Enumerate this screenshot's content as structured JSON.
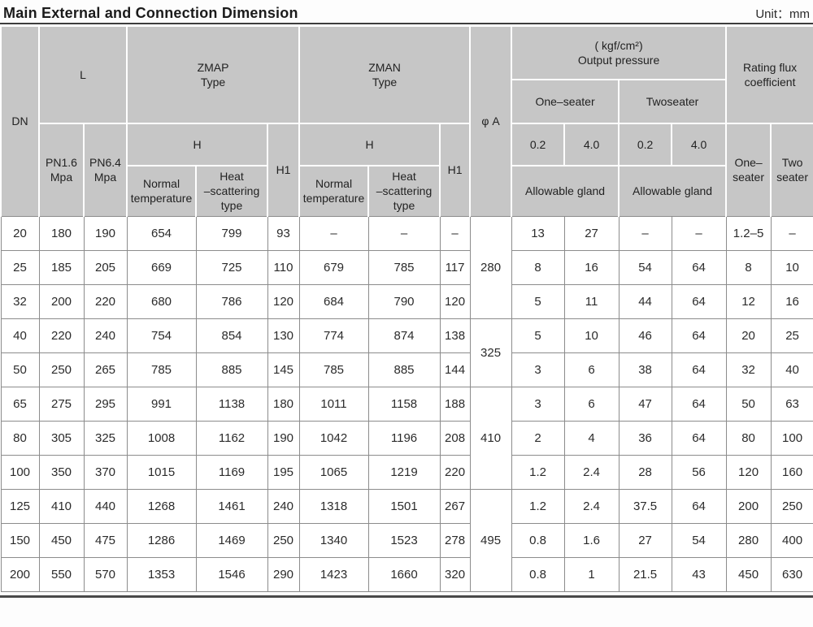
{
  "page": {
    "title": "Main External and Connection Dimension",
    "unit": "Unit：mm"
  },
  "table": {
    "header": {
      "dn": "DN",
      "l": "L",
      "pn16": "PN1.6\nMpa",
      "pn64": "PN6.4\nMpa",
      "zmap_type": "ZMAP\nType",
      "zman_type": "ZMAN\nType",
      "h": "H",
      "h1": "H1",
      "normal_temp": "Normal\ntemperature",
      "heat_type": "Heat\n–scattering\ntype",
      "phi_a": "φ A",
      "output_pressure": "( kgf/cm²)\nOutput pressure",
      "one_seater": "One–seater",
      "two_seater": "Twoseater",
      "p02": "0.2",
      "p40": "4.0",
      "allowable_gland": "Allowable gland",
      "rating_flux": "Rating flux\ncoefficient",
      "flux_one": "One–\nseater",
      "flux_two": "Two\nseater"
    },
    "rows": [
      {
        "dn": "20",
        "pn16": "180",
        "pn64": "190",
        "zmap_h_normal": "654",
        "zmap_h_heat": "799",
        "zmap_h1": "93",
        "zman_h_normal": "–",
        "zman_h_heat": "–",
        "zman_h1": "–",
        "phiA": "280",
        "phiA_span": 3,
        "os02": "13",
        "os40": "27",
        "ts02": "–",
        "ts40": "–",
        "flux_one": "1.2–5",
        "flux_two": "–"
      },
      {
        "dn": "25",
        "pn16": "185",
        "pn64": "205",
        "zmap_h_normal": "669",
        "zmap_h_heat": "725",
        "zmap_h1": "110",
        "zman_h_normal": "679",
        "zman_h_heat": "785",
        "zman_h1": "117",
        "os02": "8",
        "os40": "16",
        "ts02": "54",
        "ts40": "64",
        "flux_one": "8",
        "flux_two": "10"
      },
      {
        "dn": "32",
        "pn16": "200",
        "pn64": "220",
        "zmap_h_normal": "680",
        "zmap_h_heat": "786",
        "zmap_h1": "120",
        "zman_h_normal": "684",
        "zman_h_heat": "790",
        "zman_h1": "120",
        "os02": "5",
        "os40": "11",
        "ts02": "44",
        "ts40": "64",
        "flux_one": "12",
        "flux_two": "16"
      },
      {
        "dn": "40",
        "pn16": "220",
        "pn64": "240",
        "zmap_h_normal": "754",
        "zmap_h_heat": "854",
        "zmap_h1": "130",
        "zman_h_normal": "774",
        "zman_h_heat": "874",
        "zman_h1": "138",
        "phiA": "325",
        "phiA_span": 2,
        "os02": "5",
        "os40": "10",
        "ts02": "46",
        "ts40": "64",
        "flux_one": "20",
        "flux_two": "25"
      },
      {
        "dn": "50",
        "pn16": "250",
        "pn64": "265",
        "zmap_h_normal": "785",
        "zmap_h_heat": "885",
        "zmap_h1": "145",
        "zman_h_normal": "785",
        "zman_h_heat": "885",
        "zman_h1": "144",
        "os02": "3",
        "os40": "6",
        "ts02": "38",
        "ts40": "64",
        "flux_one": "32",
        "flux_two": "40"
      },
      {
        "dn": "65",
        "pn16": "275",
        "pn64": "295",
        "zmap_h_normal": "991",
        "zmap_h_heat": "1138",
        "zmap_h1": "180",
        "zman_h_normal": "1011",
        "zman_h_heat": "1158",
        "zman_h1": "188",
        "phiA": "410",
        "phiA_span": 3,
        "os02": "3",
        "os40": "6",
        "ts02": "47",
        "ts40": "64",
        "flux_one": "50",
        "flux_two": "63"
      },
      {
        "dn": "80",
        "pn16": "305",
        "pn64": "325",
        "zmap_h_normal": "1008",
        "zmap_h_heat": "1162",
        "zmap_h1": "190",
        "zman_h_normal": "1042",
        "zman_h_heat": "1196",
        "zman_h1": "208",
        "os02": "2",
        "os40": "4",
        "ts02": "36",
        "ts40": "64",
        "flux_one": "80",
        "flux_two": "100"
      },
      {
        "dn": "100",
        "pn16": "350",
        "pn64": "370",
        "zmap_h_normal": "1015",
        "zmap_h_heat": "1169",
        "zmap_h1": "195",
        "zman_h_normal": "1065",
        "zman_h_heat": "1219",
        "zman_h1": "220",
        "os02": "1.2",
        "os40": "2.4",
        "ts02": "28",
        "ts40": "56",
        "flux_one": "120",
        "flux_two": "160"
      },
      {
        "dn": "125",
        "pn16": "410",
        "pn64": "440",
        "zmap_h_normal": "1268",
        "zmap_h_heat": "1461",
        "zmap_h1": "240",
        "zman_h_normal": "1318",
        "zman_h_heat": "1501",
        "zman_h1": "267",
        "phiA": "495",
        "phiA_span": 3,
        "os02": "1.2",
        "os40": "2.4",
        "ts02": "37.5",
        "ts40": "64",
        "flux_one": "200",
        "flux_two": "250"
      },
      {
        "dn": "150",
        "pn16": "450",
        "pn64": "475",
        "zmap_h_normal": "1286",
        "zmap_h_heat": "1469",
        "zmap_h1": "250",
        "zman_h_normal": "1340",
        "zman_h_heat": "1523",
        "zman_h1": "278",
        "os02": "0.8",
        "os40": "1.6",
        "ts02": "27",
        "ts40": "54",
        "flux_one": "280",
        "flux_two": "400"
      },
      {
        "dn": "200",
        "pn16": "550",
        "pn64": "570",
        "zmap_h_normal": "1353",
        "zmap_h_heat": "1546",
        "zmap_h1": "290",
        "zman_h_normal": "1423",
        "zman_h_heat": "1660",
        "zman_h1": "320",
        "os02": "0.8",
        "os40": "1",
        "ts02": "21.5",
        "ts40": "43",
        "flux_one": "450",
        "flux_two": "630"
      }
    ]
  }
}
